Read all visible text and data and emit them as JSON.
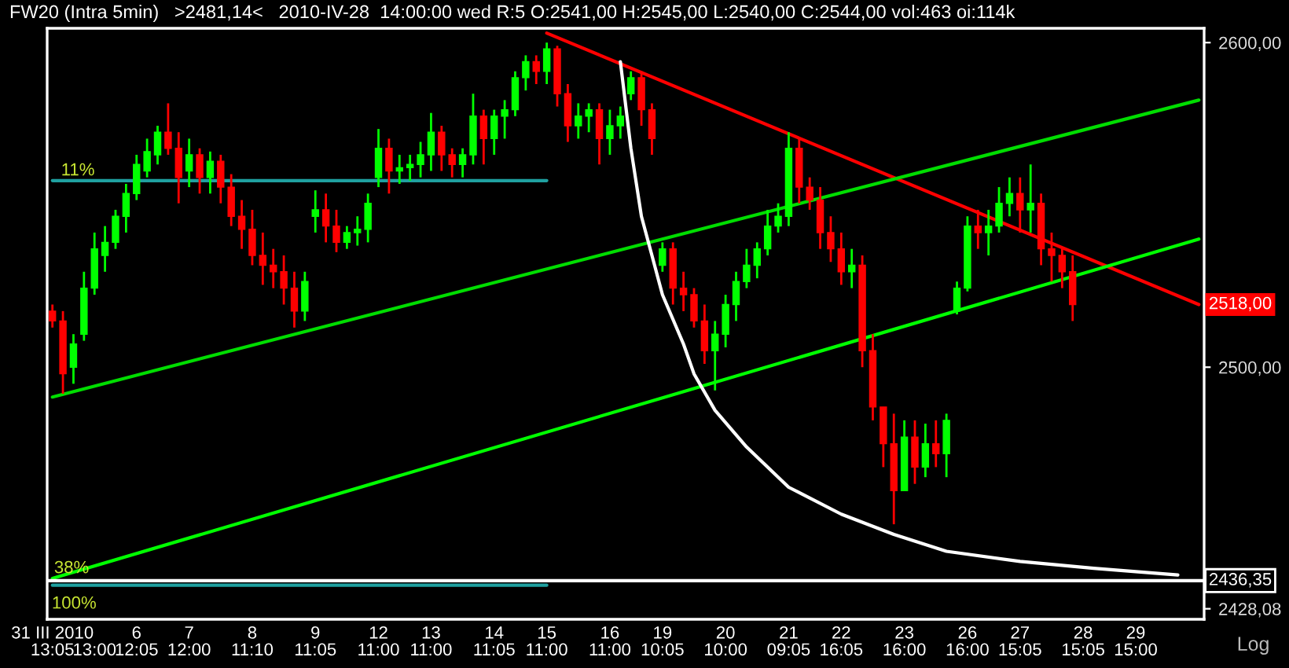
{
  "chart_data": {
    "type": "candlestick",
    "title": "FW20 (Intra 5min)   >2481,14<   2010-IV-28  14:00:00 wed R:5 O:2541,00 H:2545,00 L:2540,00 C:2544,00 vol:463 oi:114k",
    "categories": [
      "31 III 2010\n13:05",
      null,
      null,
      null,
      "\n13:00",
      null,
      null,
      null,
      "6\n12:05",
      null,
      null,
      null,
      null,
      "7\n12:00",
      null,
      null,
      null,
      null,
      null,
      "8\n11:10",
      null,
      null,
      null,
      null,
      null,
      "9\n11:05",
      null,
      null,
      null,
      null,
      null,
      "12\n11:00",
      null,
      null,
      null,
      null,
      "13\n11:00",
      null,
      null,
      null,
      null,
      null,
      "14\n11:05",
      null,
      null,
      null,
      null,
      "15\n11:00",
      null,
      null,
      null,
      null,
      null,
      "16\n11:00",
      null,
      null,
      null,
      null,
      "19\n10:05",
      null,
      null,
      null,
      null,
      null,
      "20\n10:00",
      null,
      null,
      null,
      null,
      null,
      "21\n09:05",
      null,
      null,
      null,
      null,
      "22\n16:05",
      null,
      null,
      null,
      null,
      null,
      "23\n16:00",
      null,
      null,
      null,
      null,
      null,
      "26\n16:00",
      null,
      null,
      null,
      null,
      "27\n15:05",
      null,
      null,
      null,
      null,
      null,
      "28\n15:05",
      null,
      null,
      null,
      null,
      "29\n15:00",
      null,
      null,
      null,
      null,
      null,
      null
    ],
    "ohlc": [
      [
        2517,
        2519,
        2512,
        2514
      ],
      [
        2514,
        2517,
        2492,
        2498
      ],
      [
        2500,
        2510,
        2495,
        2507
      ],
      [
        2510,
        2529,
        2508,
        2524
      ],
      [
        2524,
        2541,
        2522,
        2536
      ],
      [
        2534,
        2543,
        2529,
        2538
      ],
      [
        2538,
        2548,
        2536,
        2546
      ],
      [
        2546,
        2556,
        2541,
        2553
      ],
      [
        2553,
        2565,
        2551,
        2562
      ],
      [
        2560,
        2570,
        2558,
        2566
      ],
      [
        2565,
        2574,
        2562,
        2572
      ],
      [
        2572,
        2581,
        2565,
        2567
      ],
      [
        2567,
        2572,
        2550,
        2558
      ],
      [
        2560,
        2570,
        2555,
        2565
      ],
      [
        2565,
        2567,
        2553,
        2558
      ],
      [
        2558,
        2566,
        2553,
        2563
      ],
      [
        2563,
        2565,
        2550,
        2555
      ],
      [
        2555,
        2559,
        2543,
        2546
      ],
      [
        2546,
        2551,
        2536,
        2542
      ],
      [
        2542,
        2548,
        2531,
        2534
      ],
      [
        2534,
        2541,
        2525,
        2531
      ],
      [
        2531,
        2536,
        2524,
        2529
      ],
      [
        2529,
        2534,
        2519,
        2524
      ],
      [
        2524,
        2529,
        2512,
        2517
      ],
      [
        2517,
        2529,
        2514,
        2526
      ],
      [
        2546,
        2554,
        2541,
        2548
      ],
      [
        2548,
        2553,
        2538,
        2543
      ],
      [
        2543,
        2548,
        2535,
        2538
      ],
      [
        2538,
        2543,
        2536,
        2541
      ],
      [
        2541,
        2546,
        2537,
        2542
      ],
      [
        2542,
        2553,
        2538,
        2550
      ],
      [
        2558,
        2573,
        2555,
        2567
      ],
      [
        2567,
        2570,
        2553,
        2560
      ],
      [
        2560,
        2565,
        2556,
        2561
      ],
      [
        2561,
        2565,
        2557,
        2562
      ],
      [
        2562,
        2569,
        2558,
        2565
      ],
      [
        2565,
        2578,
        2560,
        2572
      ],
      [
        2572,
        2574,
        2560,
        2565
      ],
      [
        2565,
        2567,
        2558,
        2562
      ],
      [
        2562,
        2567,
        2558,
        2565
      ],
      [
        2565,
        2584,
        2562,
        2577
      ],
      [
        2577,
        2579,
        2562,
        2570
      ],
      [
        2570,
        2579,
        2565,
        2577
      ],
      [
        2577,
        2582,
        2570,
        2579
      ],
      [
        2579,
        2591,
        2577,
        2589
      ],
      [
        2589,
        2596,
        2585,
        2594
      ],
      [
        2594,
        2596,
        2587,
        2591
      ],
      [
        2591,
        2600,
        2587,
        2598
      ],
      [
        2598,
        2599,
        2580,
        2584
      ],
      [
        2584,
        2587,
        2569,
        2574
      ],
      [
        2574,
        2581,
        2570,
        2577
      ],
      [
        2577,
        2581,
        2572,
        2579
      ],
      [
        2579,
        2581,
        2562,
        2570
      ],
      [
        2570,
        2579,
        2565,
        2574
      ],
      [
        2574,
        2580,
        2570,
        2577
      ],
      [
        2584,
        2591,
        2582,
        2589
      ],
      [
        2589,
        2591,
        2574,
        2579
      ],
      [
        2579,
        2581,
        2565,
        2570
      ],
      [
        2531,
        2538,
        2529,
        2536
      ],
      [
        2536,
        2538,
        2519,
        2524
      ],
      [
        2524,
        2529,
        2517,
        2522
      ],
      [
        2522,
        2524,
        2512,
        2514
      ],
      [
        2514,
        2519,
        2501,
        2505
      ],
      [
        2505,
        2514,
        2493,
        2510
      ],
      [
        2510,
        2522,
        2506,
        2519
      ],
      [
        2519,
        2529,
        2514,
        2526
      ],
      [
        2526,
        2536,
        2524,
        2531
      ],
      [
        2531,
        2538,
        2527,
        2536
      ],
      [
        2536,
        2548,
        2534,
        2543
      ],
      [
        2543,
        2550,
        2541,
        2546
      ],
      [
        2546,
        2572,
        2543,
        2567
      ],
      [
        2567,
        2570,
        2550,
        2555
      ],
      [
        2555,
        2558,
        2548,
        2551
      ],
      [
        2551,
        2555,
        2536,
        2541
      ],
      [
        2541,
        2546,
        2532,
        2536
      ],
      [
        2536,
        2541,
        2525,
        2529
      ],
      [
        2529,
        2536,
        2524,
        2531
      ],
      [
        2531,
        2534,
        2500,
        2505
      ],
      [
        2505,
        2510,
        2484,
        2488
      ],
      [
        2488,
        2488,
        2470,
        2477
      ],
      [
        2477,
        2486,
        2453,
        2463
      ],
      [
        2463,
        2484,
        2463,
        2479
      ],
      [
        2479,
        2484,
        2465,
        2470
      ],
      [
        2470,
        2483,
        2467,
        2477
      ],
      [
        2477,
        2484,
        2470,
        2474
      ],
      [
        2474,
        2486,
        2467,
        2484
      ],
      [
        2517,
        2526,
        2516,
        2524
      ],
      [
        2524,
        2546,
        2523,
        2543
      ],
      [
        2543,
        2548,
        2536,
        2541
      ],
      [
        2541,
        2548,
        2534,
        2543
      ],
      [
        2543,
        2555,
        2541,
        2550
      ],
      [
        2550,
        2558,
        2546,
        2553
      ],
      [
        2553,
        2558,
        2541,
        2548
      ],
      [
        2548,
        2562,
        2541,
        2550
      ],
      [
        2550,
        2553,
        2531,
        2536
      ],
      [
        2536,
        2541,
        2526,
        2534
      ],
      [
        2534,
        2536,
        2524,
        2529
      ],
      [
        2529,
        2534,
        2514,
        2519
      ],
      null,
      null,
      null,
      null,
      null,
      null,
      null,
      null,
      null,
      null,
      null,
      null
    ],
    "colors": [
      "#ff0000",
      "#ff0000",
      "#00ff00",
      "#00ff00",
      "#00ff00",
      "#00ff00",
      "#00ff00",
      "#00ff00",
      "#00ff00",
      "#00ff00",
      "#00ff00",
      "#ff0000",
      "#ff0000",
      "#00ff00",
      "#ff0000",
      "#00ff00",
      "#ff0000",
      "#ff0000",
      "#ff0000",
      "#ff0000",
      "#ff0000",
      "#ff0000",
      "#ff0000",
      "#ff0000",
      "#00ff00",
      "#00ff00",
      "#ff0000",
      "#ff0000",
      "#00ff00",
      "#00ff00",
      "#00ff00",
      "#00ff00",
      "#ff0000",
      "#00ff00",
      "#00ff00",
      "#00ff00",
      "#00ff00",
      "#ff0000",
      "#ff0000",
      "#00ff00",
      "#00ff00",
      "#ff0000",
      "#00ff00",
      "#00ff00",
      "#00ff00",
      "#00ff00",
      "#ff0000",
      "#00ff00",
      "#ff0000",
      "#ff0000",
      "#00ff00",
      "#00ff00",
      "#ff0000",
      "#00ff00",
      "#00ff00",
      "#00ff00",
      "#ff0000",
      "#ff0000",
      "#00ff00",
      "#ff0000",
      "#ff0000",
      "#ff0000",
      "#ff0000",
      "#00ff00",
      "#00ff00",
      "#00ff00",
      "#00ff00",
      "#00ff00",
      "#00ff00",
      "#00ff00",
      "#00ff00",
      "#ff0000",
      "#ff0000",
      "#ff0000",
      "#ff0000",
      "#ff0000",
      "#00ff00",
      "#ff0000",
      "#ff0000",
      "#ff0000",
      "#ff0000",
      "#00ff00",
      "#ff0000",
      "#00ff00",
      "#ff0000",
      "#00ff00",
      "#00ff00",
      "#00ff00",
      "#ff0000",
      "#00ff00",
      "#00ff00",
      "#00ff00",
      "#ff0000",
      "#00ff00",
      "#ff0000",
      "#ff0000",
      "#ff0000",
      "#ff0000",
      null,
      null,
      null,
      null,
      null,
      null,
      null,
      null,
      null,
      null,
      null,
      null
    ],
    "series": [
      {
        "type": "line",
        "color": "#ff0000",
        "values": [
          null,
          null,
          null,
          null,
          null,
          null,
          null,
          null,
          null,
          null,
          null,
          null,
          null,
          null,
          null,
          null,
          null,
          null,
          null,
          null,
          null,
          null,
          null,
          null,
          null,
          null,
          null,
          null,
          null,
          null,
          null,
          null,
          null,
          null,
          null,
          null,
          null,
          null,
          null,
          null,
          null,
          null,
          null,
          null,
          null,
          null,
          null,
          2603,
          null,
          null,
          null,
          null,
          null,
          null,
          null,
          null,
          null,
          null,
          null,
          null,
          null,
          null,
          null,
          null,
          null,
          null,
          null,
          null,
          null,
          null,
          null,
          null,
          null,
          null,
          null,
          null,
          null,
          null,
          null,
          null,
          null,
          null,
          null,
          null,
          null,
          null,
          null,
          null,
          null,
          null,
          null,
          null,
          null,
          null,
          null,
          null,
          null,
          null,
          null,
          null,
          null,
          null,
          null,
          null,
          null,
          null,
          null,
          null,
          null,
          2519
        ]
      },
      {
        "type": "line",
        "color": "#00dd00",
        "values": [
          2491,
          null,
          null,
          null,
          null,
          null,
          null,
          null,
          null,
          null,
          null,
          null,
          null,
          null,
          null,
          null,
          null,
          null,
          null,
          null,
          null,
          null,
          null,
          null,
          null,
          null,
          null,
          null,
          null,
          null,
          null,
          null,
          null,
          null,
          null,
          null,
          null,
          null,
          null,
          null,
          null,
          null,
          null,
          null,
          null,
          null,
          null,
          null,
          null,
          null,
          null,
          null,
          null,
          null,
          null,
          null,
          null,
          null,
          null,
          null,
          null,
          null,
          null,
          null,
          null,
          null,
          null,
          null,
          null,
          null,
          null,
          null,
          null,
          null,
          null,
          null,
          null,
          null,
          null,
          null,
          null,
          null,
          null,
          null,
          null,
          null,
          null,
          null,
          null,
          null,
          null,
          null,
          null,
          null,
          null,
          null,
          null,
          null,
          null,
          null,
          null,
          null,
          null,
          null,
          null,
          null,
          null,
          null,
          null,
          2582
        ]
      },
      {
        "type": "line",
        "color": "#00ff00",
        "values": [
          2437,
          null,
          null,
          null,
          null,
          null,
          null,
          null,
          null,
          null,
          null,
          null,
          null,
          null,
          null,
          null,
          null,
          null,
          null,
          null,
          null,
          null,
          null,
          null,
          null,
          null,
          null,
          null,
          null,
          null,
          null,
          null,
          null,
          null,
          null,
          null,
          null,
          null,
          null,
          null,
          null,
          null,
          null,
          null,
          null,
          null,
          null,
          null,
          null,
          null,
          null,
          null,
          null,
          null,
          null,
          null,
          null,
          null,
          null,
          null,
          null,
          null,
          null,
          null,
          null,
          null,
          null,
          null,
          null,
          null,
          null,
          null,
          null,
          null,
          null,
          null,
          null,
          null,
          null,
          null,
          null,
          null,
          null,
          null,
          null,
          null,
          null,
          null,
          null,
          null,
          null,
          null,
          null,
          null,
          null,
          null,
          null,
          null,
          null,
          null,
          null,
          null,
          null,
          null,
          null,
          null,
          null,
          null,
          null,
          2539
        ]
      },
      {
        "type": "line",
        "color": "#1fa0a0",
        "values": [
          2557,
          null,
          null,
          null,
          null,
          null,
          null,
          null,
          null,
          null,
          null,
          null,
          null,
          null,
          null,
          null,
          null,
          null,
          null,
          null,
          null,
          null,
          null,
          null,
          null,
          null,
          null,
          null,
          null,
          null,
          null,
          null,
          null,
          null,
          null,
          null,
          null,
          null,
          null,
          null,
          null,
          null,
          null,
          null,
          null,
          null,
          null,
          2557,
          null,
          null,
          null,
          null,
          null,
          null,
          null,
          null,
          null,
          null,
          null,
          null,
          null,
          null,
          null,
          null,
          null,
          null,
          null,
          null,
          null,
          null,
          null,
          null,
          null,
          null,
          null,
          null,
          null,
          null,
          null,
          null,
          null,
          null,
          null,
          null,
          null,
          null,
          null,
          null,
          null,
          null,
          null,
          null,
          null,
          null,
          null,
          null,
          null,
          null,
          null,
          null,
          null,
          null,
          null,
          null,
          null,
          null,
          null,
          null,
          null,
          null
        ]
      },
      {
        "type": "line",
        "color": "#1fa0a0",
        "values": [
          2435,
          null,
          null,
          null,
          null,
          null,
          null,
          null,
          null,
          null,
          null,
          null,
          null,
          null,
          null,
          null,
          null,
          null,
          null,
          null,
          null,
          null,
          null,
          null,
          null,
          null,
          null,
          null,
          null,
          null,
          null,
          null,
          null,
          null,
          null,
          null,
          null,
          null,
          null,
          null,
          null,
          null,
          null,
          null,
          null,
          null,
          null,
          2435,
          null,
          null,
          null,
          null,
          null,
          null,
          null,
          null,
          null,
          null,
          null,
          null,
          null,
          null,
          null,
          null,
          null,
          null,
          null,
          null,
          null,
          null,
          null,
          null,
          null,
          null,
          null,
          null,
          null,
          null,
          null,
          null,
          null,
          null,
          null,
          null,
          null,
          null,
          null,
          null,
          null,
          null,
          null,
          null,
          null,
          null,
          null,
          null,
          null,
          null,
          null,
          null,
          null,
          null,
          null,
          null,
          null,
          null,
          null,
          null,
          null,
          null
        ]
      },
      {
        "type": "line",
        "color": "#ffffff",
        "values": [
          null,
          null,
          null,
          null,
          null,
          null,
          null,
          null,
          null,
          null,
          null,
          null,
          null,
          null,
          null,
          null,
          null,
          null,
          null,
          null,
          null,
          null,
          null,
          null,
          null,
          null,
          null,
          null,
          null,
          null,
          null,
          null,
          null,
          null,
          null,
          null,
          null,
          null,
          null,
          null,
          null,
          null,
          null,
          null,
          null,
          null,
          null,
          null,
          null,
          null,
          null,
          null,
          null,
          null,
          2594,
          2567,
          2546,
          2534,
          2522,
          null,
          2507,
          2498,
          null,
          2487,
          null,
          null,
          2476,
          null,
          null,
          null,
          2464,
          null,
          null,
          null,
          null,
          2456,
          null,
          null,
          null,
          null,
          2450,
          null,
          null,
          null,
          null,
          2445,
          null,
          null,
          null,
          null,
          null,
          null,
          2442,
          null,
          null,
          null,
          null,
          null,
          null,
          2440,
          null,
          null,
          null,
          null,
          null,
          null,
          null,
          2438,
          null,
          null
        ]
      }
    ],
    "log": true,
    "ylim": [
      2425,
      2604.5
    ],
    "yticks": [
      {
        "value": 2600,
        "label": "2600,00"
      },
      {
        "value": 2500,
        "label": "2500,00"
      },
      {
        "value": 2428.08,
        "label": "2428,08"
      }
    ],
    "ref_lines": [
      {
        "axis": "y",
        "value": 2436.35,
        "label": "2436,35",
        "color": "#ffffff"
      }
    ],
    "annotations": [
      "11%",
      "38%",
      "100%",
      "Log",
      "2518,00"
    ]
  }
}
